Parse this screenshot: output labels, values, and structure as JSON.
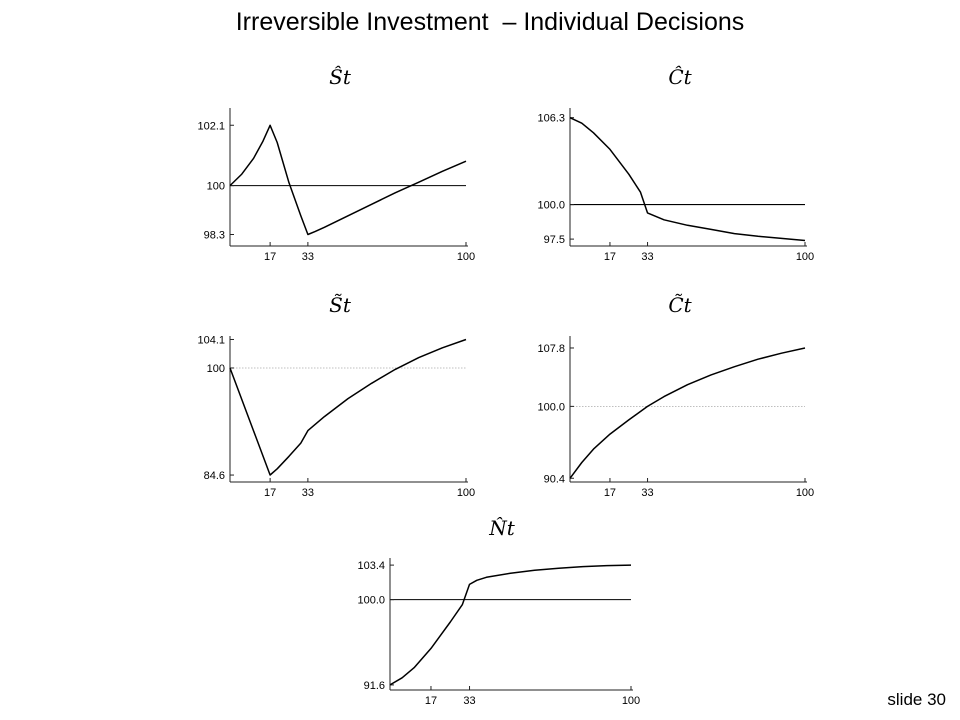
{
  "slide": {
    "title": "Irreversible Investment  – Individual Decisions",
    "number_label": "slide 30"
  },
  "chart_data": [
    {
      "type": "line",
      "title": "Ŝt",
      "xticks": [
        17,
        33,
        100
      ],
      "yticks": [
        98.3,
        100,
        102.1
      ],
      "ytick_labels": [
        "98.3",
        "100",
        "102.1"
      ],
      "xlim": [
        0,
        100
      ],
      "ylim": [
        97.9,
        102.7
      ],
      "reference_line": {
        "y": 100,
        "style": "solid"
      },
      "series": [
        {
          "x": [
            0,
            5,
            10,
            14,
            17,
            20,
            25,
            30,
            33,
            36,
            40,
            50,
            60,
            70,
            80,
            90,
            100
          ],
          "y": [
            100,
            100.4,
            100.95,
            101.55,
            102.1,
            101.5,
            100.1,
            98.95,
            98.3,
            98.4,
            98.55,
            98.95,
            99.35,
            99.75,
            100.12,
            100.5,
            100.85
          ]
        }
      ]
    },
    {
      "type": "line",
      "title": "Ĉt",
      "xticks": [
        17,
        33,
        100
      ],
      "yticks": [
        97.5,
        100.0,
        106.3
      ],
      "ytick_labels": [
        "97.5",
        "100.0",
        "106.3"
      ],
      "xlim": [
        0,
        100
      ],
      "ylim": [
        97.0,
        107.0
      ],
      "reference_line": {
        "y": 100.0,
        "style": "solid"
      },
      "series": [
        {
          "x": [
            0,
            5,
            10,
            17,
            25,
            30,
            33,
            40,
            50,
            60,
            70,
            80,
            90,
            100
          ],
          "y": [
            106.3,
            105.9,
            105.2,
            104.0,
            102.2,
            100.9,
            99.4,
            98.9,
            98.5,
            98.2,
            97.9,
            97.7,
            97.55,
            97.4
          ]
        }
      ]
    },
    {
      "type": "line",
      "title": "S̃t",
      "xticks": [
        17,
        33,
        100
      ],
      "yticks": [
        84.6,
        100,
        104.1
      ],
      "ytick_labels": [
        "84.6",
        "100",
        "104.1"
      ],
      "xlim": [
        0,
        100
      ],
      "ylim": [
        83.6,
        104.6
      ],
      "reference_line": {
        "y": 100,
        "style": "dotted"
      },
      "series": [
        {
          "x": [
            0,
            17,
            20,
            25,
            30,
            33,
            40,
            50,
            60,
            70,
            80,
            90,
            100
          ],
          "y": [
            100,
            84.6,
            85.5,
            87.3,
            89.2,
            91.0,
            93.0,
            95.6,
            97.8,
            99.8,
            101.5,
            102.9,
            104.1
          ]
        }
      ]
    },
    {
      "type": "line",
      "title": "C̃t",
      "xticks": [
        17,
        33,
        100
      ],
      "yticks": [
        90.4,
        100.0,
        107.8
      ],
      "ytick_labels": [
        "90.4",
        "100.0",
        "107.8"
      ],
      "xlim": [
        0,
        100
      ],
      "ylim": [
        89.9,
        109.4
      ],
      "reference_line": {
        "y": 100.0,
        "style": "dotted"
      },
      "series": [
        {
          "x": [
            0,
            5,
            10,
            17,
            25,
            33,
            40,
            50,
            60,
            70,
            80,
            90,
            100
          ],
          "y": [
            90.4,
            92.5,
            94.3,
            96.3,
            98.2,
            100.0,
            101.3,
            102.9,
            104.2,
            105.3,
            106.3,
            107.1,
            107.8
          ]
        }
      ]
    },
    {
      "type": "line",
      "title": "N̂t",
      "xticks": [
        17,
        33,
        100
      ],
      "yticks": [
        91.6,
        100.0,
        103.4
      ],
      "ytick_labels": [
        "91.6",
        "100.0",
        "103.4"
      ],
      "xlim": [
        0,
        100
      ],
      "ylim": [
        91.1,
        104.1
      ],
      "reference_line": {
        "y": 100.0,
        "style": "solid"
      },
      "series": [
        {
          "x": [
            0,
            5,
            10,
            17,
            25,
            30,
            33,
            36,
            40,
            50,
            60,
            70,
            80,
            90,
            100
          ],
          "y": [
            91.6,
            92.3,
            93.3,
            95.2,
            97.8,
            99.5,
            101.5,
            101.9,
            102.2,
            102.6,
            102.9,
            103.1,
            103.25,
            103.35,
            103.4
          ]
        }
      ]
    }
  ]
}
